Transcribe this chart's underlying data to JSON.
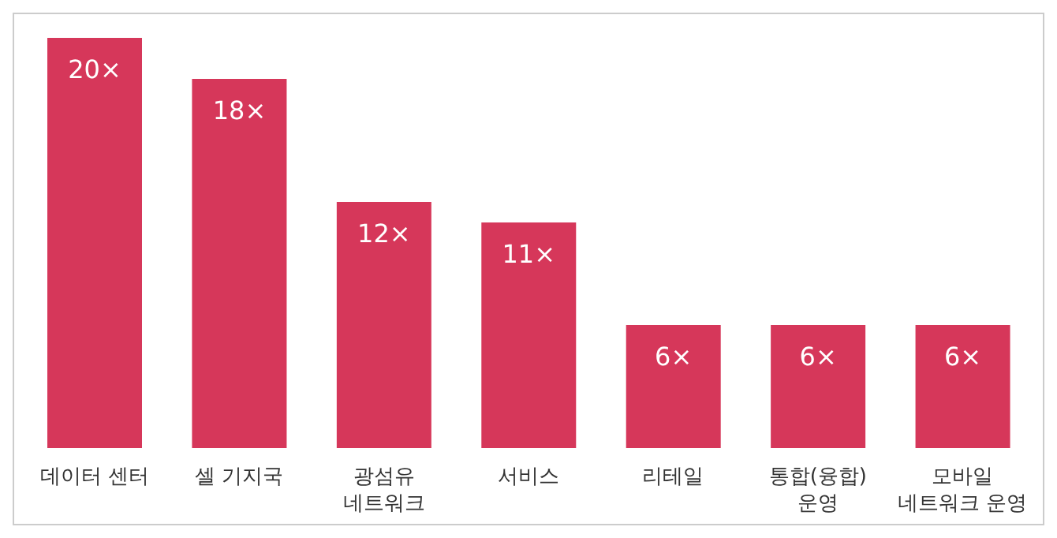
{
  "chart_data": {
    "type": "bar",
    "categories": [
      "데이터 센터",
      "셀 기지국",
      "광섬유\n네트워크",
      "서비스",
      "리테일",
      "통합(융합)\n운영",
      "모바일\n네트워크 운영"
    ],
    "values": [
      20,
      18,
      12,
      11,
      6,
      6,
      6
    ],
    "value_labels": [
      "20×",
      "18×",
      "12×",
      "11×",
      "6×",
      "6×",
      "6×"
    ],
    "color": "#d6375a",
    "grid": false,
    "legend": false
  }
}
